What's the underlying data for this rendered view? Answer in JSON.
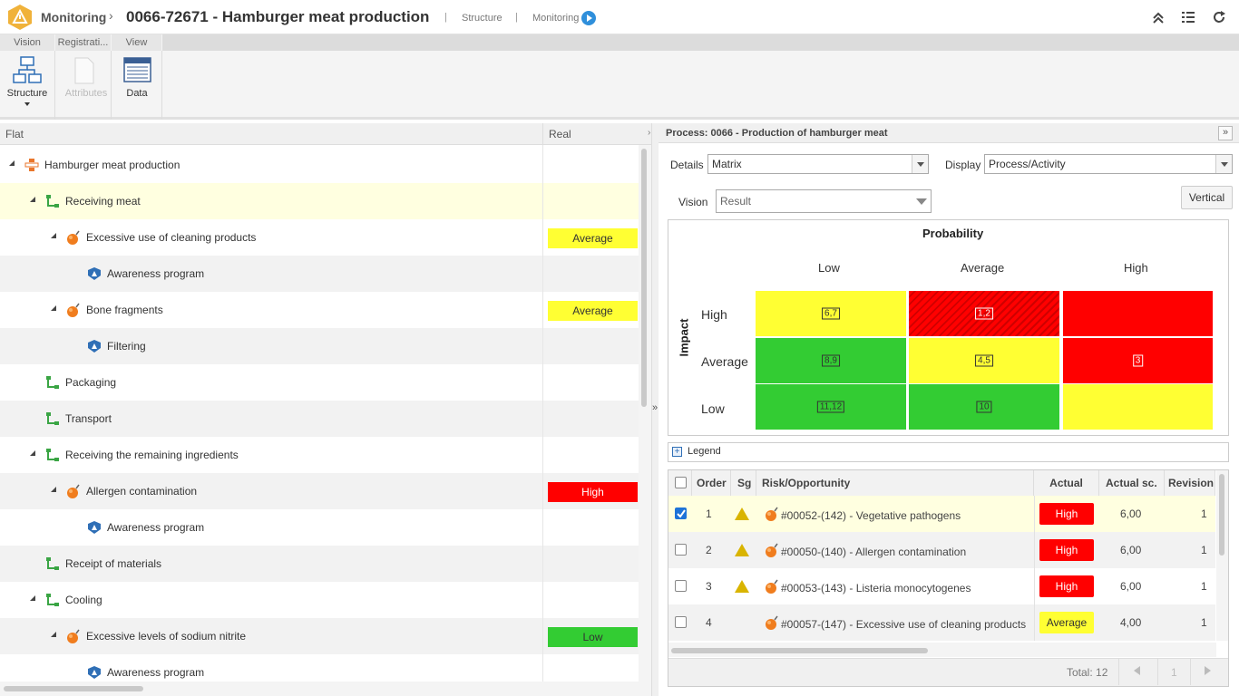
{
  "topbar": {
    "module": "Monitoring",
    "title": "0066-72671 - Hamburger meat production",
    "link_structure": "Structure",
    "link_monitoring": "Monitoring",
    "separator": "|"
  },
  "ribbon": {
    "tabs": [
      "Vision",
      "Registrati...",
      "View"
    ],
    "buttons": {
      "structure": "Structure",
      "attributes": "Attributes",
      "data": "Data"
    }
  },
  "left": {
    "col_flat": "Flat",
    "col_real": "Real",
    "rows": [
      {
        "label": "Hamburger meat production",
        "badge": ""
      },
      {
        "label": "Receiving meat",
        "badge": ""
      },
      {
        "label": "Excessive use of cleaning products",
        "badge": "Average"
      },
      {
        "label": "Awareness program",
        "badge": ""
      },
      {
        "label": "Bone fragments",
        "badge": "Average"
      },
      {
        "label": "Filtering",
        "badge": ""
      },
      {
        "label": "Packaging",
        "badge": ""
      },
      {
        "label": "Transport",
        "badge": ""
      },
      {
        "label": "Receiving the remaining ingredients",
        "badge": ""
      },
      {
        "label": "Allergen contamination",
        "badge": "High"
      },
      {
        "label": "Awareness program",
        "badge": ""
      },
      {
        "label": "Receipt of materials",
        "badge": ""
      },
      {
        "label": "Cooling",
        "badge": ""
      },
      {
        "label": "Excessive levels of sodium nitrite",
        "badge": "Low"
      },
      {
        "label": "Awareness program",
        "badge": ""
      }
    ]
  },
  "right": {
    "title": "Process: 0066 - Production of hamburger meat",
    "details_label": "Details",
    "details_value": "Matrix",
    "display_label": "Display",
    "display_value": "Process/Activity",
    "vision_label": "Vision",
    "vision_value": "Result",
    "vertical_btn": "Vertical",
    "matrix": {
      "x_title": "Probability",
      "y_title": "Impact",
      "x_levels": [
        "Low",
        "Average",
        "High"
      ],
      "y_levels": [
        "High",
        "Average",
        "Low"
      ],
      "cells": [
        [
          "6,7",
          "1,2",
          ""
        ],
        [
          "8,9",
          "4,5",
          "3"
        ],
        [
          "11,12",
          "10",
          ""
        ]
      ]
    },
    "legend": "Legend",
    "grid": {
      "headers": {
        "order": "Order",
        "sg": "Sg",
        "risk": "Risk/Opportunity",
        "actual": "Actual",
        "actual_sc": "Actual sc.",
        "revision": "Revision"
      },
      "rows": [
        {
          "order": "1",
          "risk": "#00052-(142) - Vegetative pathogens",
          "actual": "High",
          "score": "6,00",
          "revision": "1"
        },
        {
          "order": "2",
          "risk": "#00050-(140) - Allergen contamination",
          "actual": "High",
          "score": "6,00",
          "revision": "1"
        },
        {
          "order": "3",
          "risk": "#00053-(143) - Listeria monocytogenes",
          "actual": "High",
          "score": "6,00",
          "revision": "1"
        },
        {
          "order": "4",
          "risk": "#00057-(147) - Excessive use of cleaning products",
          "actual": "Average",
          "score": "4,00",
          "revision": "1"
        }
      ],
      "total": "Total: 12",
      "page": "1"
    }
  },
  "colors": {
    "high": "#ff0000",
    "average": "#ffff33",
    "low": "#33cc33",
    "brand": "#f0b23a",
    "accent": "#2f8fdb"
  }
}
